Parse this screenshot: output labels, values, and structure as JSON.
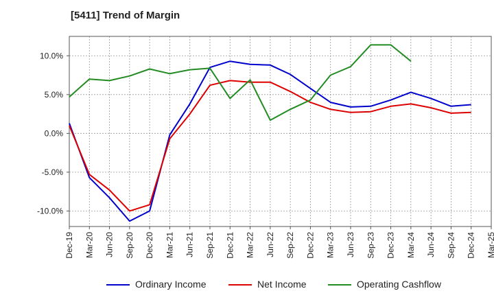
{
  "chart_data": {
    "type": "line",
    "title": "[5411]  Trend of Margin",
    "categories": [
      "Dec-19",
      "Mar-20",
      "Jun-20",
      "Sep-20",
      "Dec-20",
      "Mar-21",
      "Jun-21",
      "Sep-21",
      "Dec-21",
      "Mar-22",
      "Jun-22",
      "Sep-22",
      "Dec-22",
      "Mar-23",
      "Jun-23",
      "Sep-23",
      "Dec-23",
      "Mar-24",
      "Jun-24",
      "Sep-24",
      "Dec-24",
      "Mar-25"
    ],
    "yticks": [
      -10,
      -5,
      0,
      5,
      10
    ],
    "ytick_labels": [
      "-10.0%",
      "-5.0%",
      "0.0%",
      "5.0%",
      "10.0%"
    ],
    "ylim": [
      -12,
      12.5
    ],
    "grid": true,
    "legend_position": "bottom",
    "series": [
      {
        "name": "Ordinary Income",
        "color": "#0000cc",
        "values": [
          1.3,
          -5.7,
          -8.3,
          -11.3,
          -10.0,
          -0.2,
          3.8,
          8.5,
          9.3,
          8.9,
          8.8,
          7.6,
          5.8,
          4.0,
          3.4,
          3.5,
          4.3,
          5.3,
          4.5,
          3.5,
          3.7,
          null
        ]
      },
      {
        "name": "Net Income",
        "color": "#dd0000",
        "values": [
          1.0,
          -5.3,
          -7.3,
          -10.0,
          -9.2,
          -0.7,
          2.5,
          6.2,
          6.8,
          6.6,
          6.6,
          5.4,
          4.0,
          3.1,
          2.7,
          2.8,
          3.5,
          3.8,
          3.3,
          2.6,
          2.7,
          null
        ]
      },
      {
        "name": "Operating Cashflow",
        "color": "#228b22",
        "values": [
          4.7,
          7.0,
          6.8,
          7.4,
          8.3,
          7.7,
          8.2,
          8.4,
          4.5,
          6.9,
          1.7,
          3.1,
          4.3,
          7.5,
          8.6,
          11.4,
          11.4,
          9.3,
          null,
          null,
          null,
          null
        ]
      }
    ]
  }
}
